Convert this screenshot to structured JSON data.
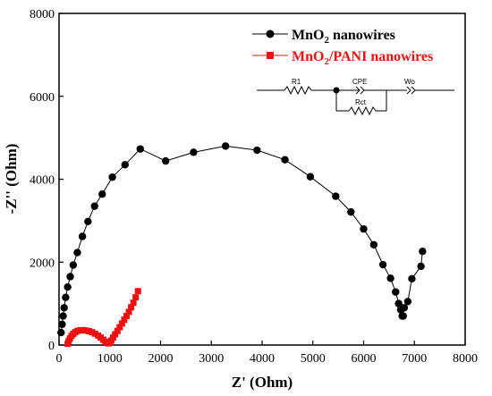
{
  "chart_data": {
    "type": "scatter",
    "xlabel": "Z' (Ohm)",
    "ylabel": "-Z'' (Ohm)",
    "xlim": [
      0,
      8000
    ],
    "ylim": [
      0,
      8000
    ],
    "xticks": [
      0,
      1000,
      2000,
      3000,
      4000,
      5000,
      6000,
      7000,
      8000
    ],
    "yticks": [
      0,
      2000,
      4000,
      6000,
      8000
    ],
    "legend_position": "top-right",
    "series": [
      {
        "name": "MnO2 nanowires",
        "legend_main": "MnO",
        "legend_sub": "2",
        "legend_rest": " nanowires",
        "color": "#000000",
        "marker": "circle",
        "x": [
          40,
          60,
          80,
          100,
          130,
          170,
          220,
          280,
          360,
          460,
          570,
          700,
          850,
          1050,
          1300,
          1600,
          2100,
          2650,
          3280,
          3900,
          4450,
          4950,
          5450,
          5750,
          6000,
          6200,
          6380,
          6530,
          6630,
          6690,
          6730,
          6760,
          6780,
          6800,
          6870,
          6950,
          7130,
          7160
        ],
        "y": [
          300,
          500,
          700,
          900,
          1150,
          1400,
          1650,
          1930,
          2230,
          2620,
          2980,
          3350,
          3640,
          4050,
          4350,
          4730,
          4440,
          4650,
          4800,
          4700,
          4470,
          4060,
          3590,
          3210,
          2800,
          2420,
          1940,
          1610,
          1280,
          1000,
          850,
          700,
          700,
          900,
          1050,
          1600,
          1900,
          2260
        ]
      },
      {
        "name": "MnO2/PANI nanowires",
        "legend_main": "MnO",
        "legend_sub": "2",
        "legend_rest": "/PANI nanowires",
        "color": "#ee1111",
        "marker": "square",
        "x": [
          170,
          190,
          215,
          245,
          280,
          320,
          365,
          415,
          470,
          530,
          590,
          650,
          710,
          770,
          820,
          870,
          910,
          945,
          975,
          1000,
          1030,
          1065,
          1105,
          1150,
          1195,
          1240,
          1285,
          1330,
          1375,
          1420,
          1465,
          1510,
          1555
        ],
        "y": [
          30,
          100,
          160,
          220,
          270,
          310,
          340,
          355,
          360,
          350,
          335,
          310,
          275,
          230,
          180,
          130,
          80,
          50,
          40,
          60,
          110,
          180,
          260,
          340,
          430,
          520,
          610,
          700,
          800,
          910,
          1020,
          1150,
          1300
        ]
      }
    ],
    "inset_circuit": {
      "labels": {
        "r1": "R1",
        "cpe": "CPE",
        "wo": "Wo",
        "rct": "Rct"
      }
    }
  }
}
